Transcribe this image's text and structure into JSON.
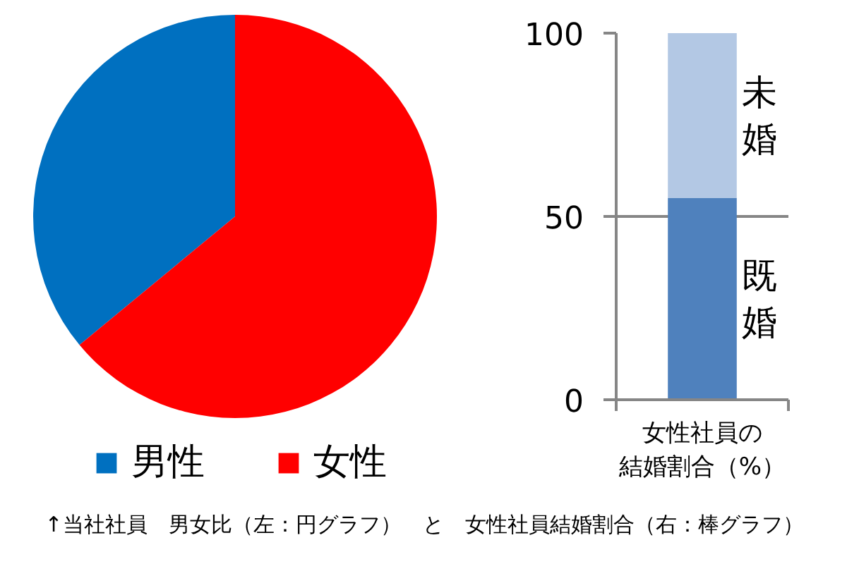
{
  "chart_data": [
    {
      "type": "pie",
      "categories": [
        "男性",
        "女性"
      ],
      "values": [
        36,
        64
      ],
      "colors": [
        "#0070c0",
        "#ff0000"
      ],
      "legend": "bottom"
    },
    {
      "type": "bar",
      "categories": [
        "女性社員の結婚割合（%）"
      ],
      "series": [
        {
          "name": "既婚",
          "color": "#4f81bd",
          "values": [
            55
          ]
        },
        {
          "name": "未婚",
          "color": "#b3c8e4",
          "values": [
            45
          ]
        }
      ],
      "stacked": true,
      "ylim": [
        0,
        100
      ],
      "yticks": [
        0,
        50,
        100
      ],
      "grid": "y"
    },
    {
      "type": "other",
      "annotations": [
        "↑当社社員　男女比（左：円グラフ）　と　女性社員結婚割合（右：棒グラフ）"
      ]
    }
  ]
}
